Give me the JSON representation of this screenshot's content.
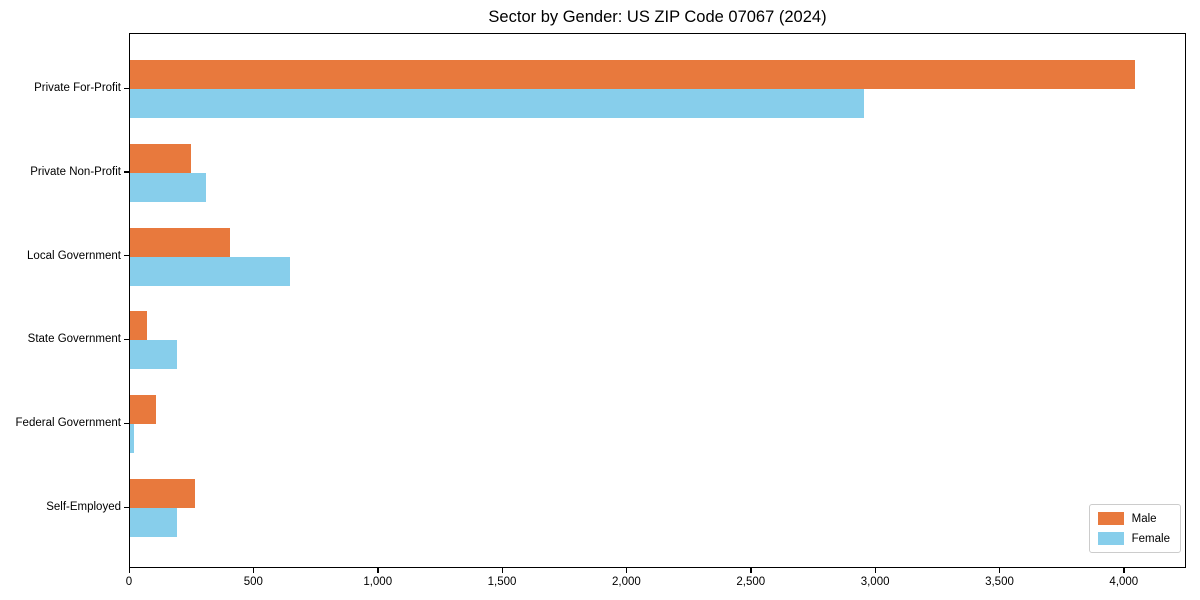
{
  "title": "Sector by Gender: US ZIP Code 07067 (2024)",
  "chart_data": {
    "type": "bar",
    "orientation": "horizontal",
    "title": "Sector by Gender: US ZIP Code 07067 (2024)",
    "categories": [
      "Private For-Profit",
      "Private Non-Profit",
      "Local Government",
      "State Government",
      "Federal Government",
      "Self-Employed"
    ],
    "series": [
      {
        "name": "Male",
        "color": "#e8793d",
        "values": [
          4040,
          245,
          400,
          68,
          104,
          260
        ]
      },
      {
        "name": "Female",
        "color": "#87ceeb",
        "values": [
          2950,
          305,
          645,
          190,
          15,
          190
        ]
      }
    ],
    "xlim": [
      0,
      4250
    ],
    "x_ticks": [
      0,
      500,
      1000,
      1500,
      2000,
      2500,
      3000,
      3500,
      4000
    ],
    "x_tick_labels": [
      "0",
      "500",
      "1,000",
      "1,500",
      "2,000",
      "2,500",
      "3,000",
      "3,500",
      "4,000"
    ],
    "xlabel": "",
    "ylabel": "",
    "grid": false,
    "legend_position": "lower right"
  }
}
